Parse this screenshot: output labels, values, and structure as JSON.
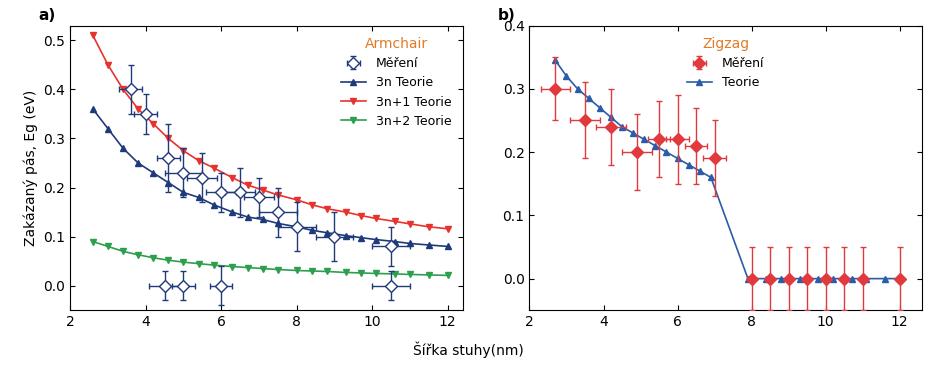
{
  "chart_data": [
    {
      "type": "line",
      "label": "a)",
      "annotation": "Armchair",
      "annotation_color": "#e07b28",
      "y_label": "Zakázaný pás, Eg (eV)",
      "xlim": [
        2,
        12.4
      ],
      "xticks": [
        2,
        4,
        6,
        8,
        10,
        12
      ],
      "ylim": [
        -0.05,
        0.53
      ],
      "yticks": [
        {
          "value": 0,
          "label": "0.0"
        },
        0.1,
        0.2,
        0.3,
        0.4,
        0.5
      ],
      "legend": "upper right",
      "series": [
        {
          "name": "Měření",
          "type": "scatter",
          "color": "#1f3a7a",
          "marker": "diamond_open",
          "x": [
            3.6,
            4.0,
            4.5,
            4.6,
            5.0,
            5.0,
            5.5,
            6.0,
            6.0,
            6.5,
            7.0,
            7.5,
            8.0,
            9.0,
            10.5,
            10.5
          ],
          "values": [
            0.4,
            0.35,
            0.0,
            0.26,
            0.23,
            0.0,
            0.22,
            0.19,
            0.0,
            0.19,
            0.18,
            0.15,
            0.12,
            0.1,
            0.08,
            0.0
          ],
          "xerr": [
            0.3,
            0.3,
            0.4,
            0.3,
            0.5,
            0.3,
            0.4,
            0.4,
            0.3,
            0.4,
            0.4,
            0.5,
            0.5,
            0.5,
            0.5,
            0.5
          ],
          "yerr": [
            0.05,
            0.04,
            0.03,
            0.07,
            0.05,
            0.03,
            0.05,
            0.04,
            0.04,
            0.05,
            0.04,
            0.05,
            0.05,
            0.05,
            0.04,
            0.03
          ]
        },
        {
          "name": "3n Teorie",
          "type": "line",
          "color": "#1f3a7a",
          "marker": "triangle_up",
          "x": [
            2.6,
            3.0,
            3.4,
            3.8,
            4.2,
            4.6,
            5.0,
            5.4,
            5.8,
            6.3,
            6.7,
            7.1,
            7.5,
            8.0,
            8.4,
            8.8,
            9.3,
            9.7,
            10.1,
            10.6,
            11.0,
            11.5,
            12.0
          ],
          "values": [
            0.36,
            0.32,
            0.28,
            0.25,
            0.23,
            0.21,
            0.19,
            0.18,
            0.165,
            0.15,
            0.14,
            0.135,
            0.127,
            0.12,
            0.113,
            0.108,
            0.102,
            0.098,
            0.094,
            0.09,
            0.086,
            0.083,
            0.08
          ]
        },
        {
          "name": "3n+1 Teorie",
          "type": "line",
          "color": "#e8322e",
          "marker": "triangle_down",
          "x": [
            2.6,
            3.0,
            3.4,
            3.8,
            4.2,
            4.6,
            5.0,
            5.4,
            5.8,
            6.3,
            6.7,
            7.1,
            7.5,
            8.0,
            8.4,
            8.8,
            9.3,
            9.7,
            10.1,
            10.6,
            11.0,
            11.5,
            12.0
          ],
          "values": [
            0.51,
            0.45,
            0.4,
            0.36,
            0.33,
            0.3,
            0.275,
            0.255,
            0.24,
            0.22,
            0.205,
            0.195,
            0.185,
            0.175,
            0.165,
            0.157,
            0.15,
            0.143,
            0.137,
            0.131,
            0.126,
            0.12,
            0.116
          ]
        },
        {
          "name": "3n+2 Teorie",
          "type": "line",
          "color": "#2e9e4f",
          "marker": "triangle_down",
          "x": [
            2.6,
            3.0,
            3.4,
            3.8,
            4.2,
            4.6,
            5.0,
            5.4,
            5.8,
            6.3,
            6.7,
            7.1,
            7.5,
            8.0,
            8.4,
            8.8,
            9.3,
            9.7,
            10.1,
            10.6,
            11.0,
            11.5,
            12.0
          ],
          "values": [
            0.09,
            0.08,
            0.07,
            0.063,
            0.057,
            0.052,
            0.048,
            0.045,
            0.042,
            0.039,
            0.037,
            0.035,
            0.033,
            0.031,
            0.03,
            0.029,
            0.027,
            0.026,
            0.025,
            0.024,
            0.023,
            0.022,
            0.021
          ]
        }
      ]
    },
    {
      "type": "line",
      "label": "b)",
      "annotation": "Zigzag",
      "annotation_color": "#e07b28",
      "x_label": "Šířka stuhy(nm)",
      "xlim": [
        2,
        12.6
      ],
      "xticks": [
        2,
        4,
        6,
        8,
        10,
        12
      ],
      "ylim": [
        -0.05,
        0.4
      ],
      "yticks": [
        {
          "value": 0,
          "label": "0.0"
        },
        0.1,
        0.2,
        0.3,
        0.4
      ],
      "legend": "upper center",
      "series": [
        {
          "name": "Měření",
          "type": "scatter",
          "color": "#e0393e",
          "marker": "diamond",
          "x": [
            2.7,
            3.5,
            4.2,
            4.9,
            5.5,
            6.0,
            6.5,
            7.0,
            8.0,
            8.5,
            9.0,
            9.5,
            10.0,
            10.5,
            11.0,
            12.0
          ],
          "values": [
            0.3,
            0.25,
            0.24,
            0.2,
            0.22,
            0.22,
            0.21,
            0.19,
            0.0,
            0.0,
            0.0,
            0.0,
            0.0,
            0.0,
            0.0,
            0.0
          ],
          "xerr": [
            0.4,
            0.4,
            0.4,
            0.4,
            0.3,
            0.3,
            0.3,
            0.3,
            0,
            0,
            0,
            0,
            0,
            0,
            0,
            0
          ],
          "yerr": [
            0.05,
            0.06,
            0.06,
            0.06,
            0.06,
            0.07,
            0.06,
            0.06,
            0.05,
            0.05,
            0.05,
            0.05,
            0.05,
            0.05,
            0.05,
            0.05
          ]
        },
        {
          "name": "Teorie",
          "type": "line",
          "color": "#2a5caa",
          "marker": "triangle_up",
          "x": [
            2.7,
            3.0,
            3.3,
            3.6,
            3.9,
            4.2,
            4.5,
            4.8,
            5.1,
            5.4,
            5.7,
            6.0,
            6.3,
            6.6,
            6.9,
            7.9,
            8.4,
            8.8,
            9.3,
            9.8,
            10.2,
            10.7,
            11.1,
            11.6,
            12.0
          ],
          "values": [
            0.345,
            0.32,
            0.3,
            0.285,
            0.27,
            0.255,
            0.24,
            0.23,
            0.22,
            0.21,
            0.2,
            0.19,
            0.18,
            0.17,
            0.16,
            0.0,
            0.0,
            0.0,
            0.0,
            0.0,
            0.0,
            0.0,
            0.0,
            0.0,
            0.0
          ]
        }
      ]
    }
  ]
}
